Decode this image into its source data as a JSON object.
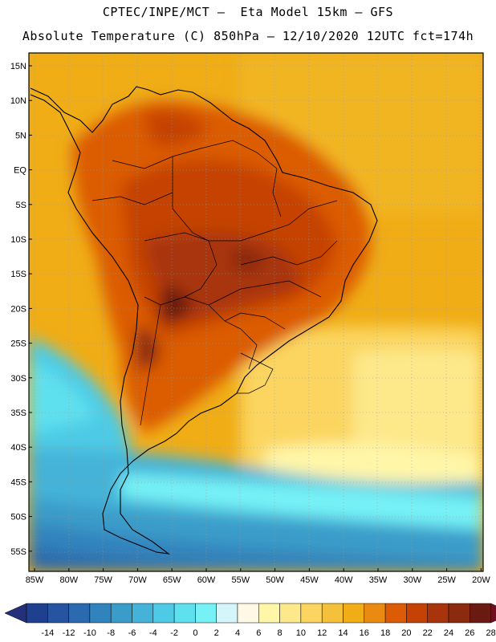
{
  "header": {
    "line1": "CPTEC/INPE/MCT –  Eta Model 15km – GFS",
    "line2": "Absolute Temperature (C) 850hPa – 12/10/2020 12UTC fct=174h"
  },
  "axes": {
    "lat_labels": [
      "15N",
      "10N",
      "5N",
      "EQ",
      "5S",
      "10S",
      "15S",
      "20S",
      "25S",
      "30S",
      "35S",
      "40S",
      "45S",
      "50S",
      "55S"
    ],
    "lon_labels": [
      "85W",
      "80W",
      "75W",
      "70W",
      "65W",
      "60W",
      "55W",
      "50W",
      "45W",
      "40W",
      "35W",
      "30W",
      "25W",
      "20W"
    ]
  },
  "colorbar": {
    "labels": [
      "-14",
      "-12",
      "-10",
      "-8",
      "-6",
      "-4",
      "-2",
      "0",
      "2",
      "4",
      "6",
      "8",
      "10",
      "12",
      "14",
      "16",
      "18",
      "20",
      "22",
      "24",
      "26",
      "28"
    ],
    "colors": [
      "#1f3f8f",
      "#2654a0",
      "#2b6aae",
      "#3183bd",
      "#3a9cc9",
      "#45b3d8",
      "#4dcbe6",
      "#5fe0ee",
      "#76f2f6",
      "#d4f6fb",
      "#fff8e6",
      "#fff6a8",
      "#fde88a",
      "#fbd55f",
      "#f5c13a",
      "#f0ad16",
      "#eb8a10",
      "#dc5c06",
      "#c54206",
      "#a8340b",
      "#8b2a0f",
      "#6a1a10"
    ],
    "low_arrow_color": "#24307a",
    "high_arrow_color": "#6e1020"
  }
}
